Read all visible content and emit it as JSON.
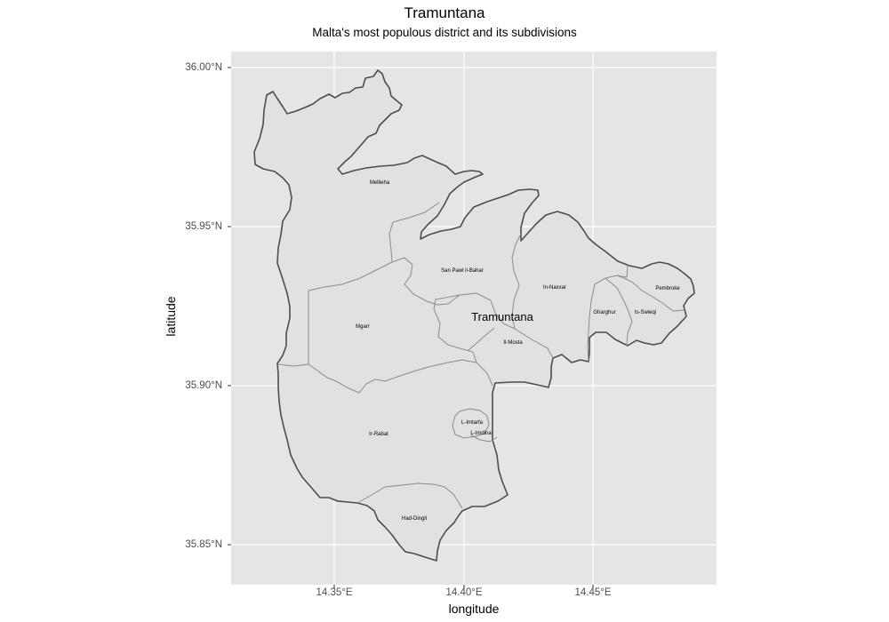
{
  "title": "Tramuntana",
  "subtitle": "Malta's most populous district and its subdivisions",
  "axes": {
    "xlabel": "longitude",
    "ylabel": "latitude",
    "x_ticks": [
      "14.35°E",
      "14.40°E",
      "14.45°E"
    ],
    "y_ticks": [
      "36.00°N",
      "35.95°N",
      "35.90°N",
      "35.85°N"
    ]
  },
  "district_label": "Tramuntana",
  "subdivisions": [
    "Mellieha",
    "San Pawl il-Bahar",
    "In-Naxxar",
    "Pembroke",
    "Gharghur",
    "Is-Swieqi",
    "Mgarr",
    "Il-Mosta",
    "L-Imtarfa",
    "L-Imdina",
    "Ir-Rabat",
    "Had-Dingli"
  ],
  "colors": {
    "panel_background": "#e5e5e5",
    "grid": "#ffffff",
    "district_fill": "#e1e1e1",
    "district_border": "#4d4d4d",
    "subdivision_border": "#8c8c8c"
  }
}
